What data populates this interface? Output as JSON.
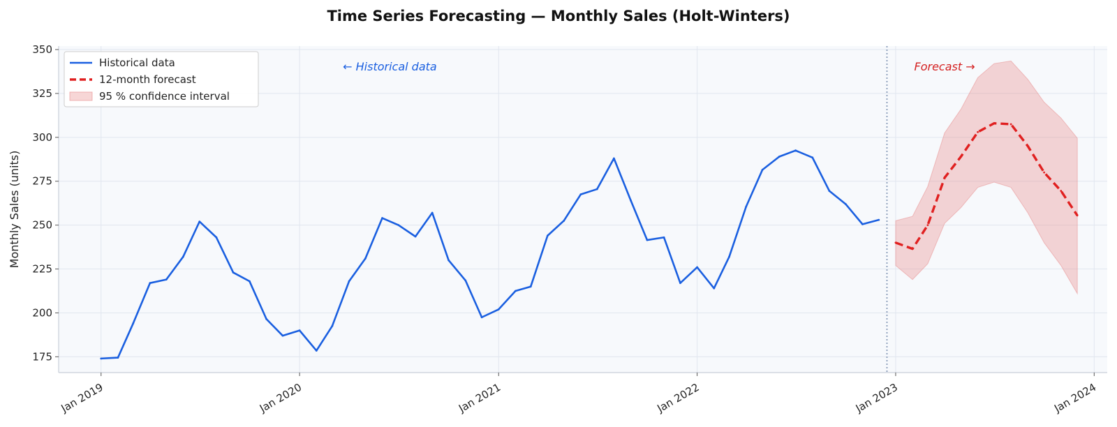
{
  "chart_data": {
    "type": "line",
    "title": "Time Series Forecasting — Monthly Sales (Holt-Winters)",
    "xlabel": "",
    "ylabel": "Monthly Sales (units)",
    "ylim": [
      166,
      352
    ],
    "xlim": [
      "2018-10-15",
      "2024-01-25"
    ],
    "yticks": [
      175,
      200,
      225,
      250,
      275,
      300,
      325,
      350
    ],
    "xticks": [
      {
        "date": "2019-01-01",
        "label": "Jan 2019"
      },
      {
        "date": "2020-01-01",
        "label": "Jan 2020"
      },
      {
        "date": "2021-01-01",
        "label": "Jan 2021"
      },
      {
        "date": "2022-01-01",
        "label": "Jan 2022"
      },
      {
        "date": "2023-01-01",
        "label": "Jan 2023"
      },
      {
        "date": "2024-01-01",
        "label": "Jan 2024"
      }
    ],
    "grid": true,
    "legend_position": "top-left",
    "divider_date": "2022-12-16",
    "series": [
      {
        "name": "Historical data",
        "color": "#1a5fe0",
        "style": "solid",
        "x": [
          "2019-01-01",
          "2019-02-01",
          "2019-03-01",
          "2019-04-01",
          "2019-05-01",
          "2019-06-01",
          "2019-07-01",
          "2019-08-01",
          "2019-09-01",
          "2019-10-01",
          "2019-11-01",
          "2019-12-01",
          "2020-01-01",
          "2020-02-01",
          "2020-03-01",
          "2020-04-01",
          "2020-05-01",
          "2020-06-01",
          "2020-07-01",
          "2020-08-01",
          "2020-09-01",
          "2020-10-01",
          "2020-11-01",
          "2020-12-01",
          "2021-01-01",
          "2021-02-01",
          "2021-03-01",
          "2021-04-01",
          "2021-05-01",
          "2021-06-01",
          "2021-07-01",
          "2021-08-01",
          "2021-09-01",
          "2021-10-01",
          "2021-11-01",
          "2021-12-01",
          "2022-01-01",
          "2022-02-01",
          "2022-03-01",
          "2022-04-01",
          "2022-05-01",
          "2022-06-01",
          "2022-07-01",
          "2022-08-01",
          "2022-09-01",
          "2022-10-01",
          "2022-11-01",
          "2022-12-01"
        ],
        "values": [
          174,
          174.5,
          194,
          217,
          219,
          232,
          252,
          243,
          223,
          218,
          196.5,
          187,
          190,
          178.5,
          192.5,
          218,
          231,
          254,
          250,
          243.5,
          257,
          230,
          218.5,
          197.5,
          202,
          212.5,
          215,
          244,
          252.5,
          267.5,
          270.5,
          288,
          264,
          241.5,
          243,
          217,
          226,
          214,
          232,
          260.5,
          281.5,
          289,
          292.5,
          288.5,
          269.5,
          262,
          250.5,
          253
        ]
      },
      {
        "name": "12-month forecast",
        "color": "#e02020",
        "style": "dashed",
        "x": [
          "2023-01-01",
          "2023-02-01",
          "2023-03-01",
          "2023-04-01",
          "2023-05-01",
          "2023-06-01",
          "2023-07-01",
          "2023-08-01",
          "2023-09-01",
          "2023-10-01",
          "2023-11-01",
          "2023-12-01"
        ],
        "values": [
          240,
          236.5,
          250,
          277,
          289,
          303,
          308,
          307.5,
          295,
          280,
          269.5,
          255.5
        ]
      }
    ],
    "confidence_interval": {
      "name": "95 % confidence interval",
      "color": "#e88a8a",
      "x": [
        "2023-01-01",
        "2023-02-01",
        "2023-03-01",
        "2023-04-01",
        "2023-05-01",
        "2023-06-01",
        "2023-07-01",
        "2023-08-01",
        "2023-09-01",
        "2023-10-01",
        "2023-11-01",
        "2023-12-01"
      ],
      "lower": [
        227,
        219,
        228,
        251,
        260,
        271.5,
        274.5,
        271.5,
        257,
        240,
        227,
        211
      ],
      "upper": [
        252.5,
        255,
        272,
        302.5,
        316,
        334,
        342,
        343.5,
        333,
        320,
        311,
        299.5
      ]
    },
    "annotations": [
      {
        "text": "← Historical data",
        "date": "2020-06-15",
        "y": 338,
        "color": "#1a5fe0"
      },
      {
        "text": "Forecast →",
        "date": "2023-04-01",
        "y": 338,
        "color": "#d42020"
      }
    ]
  }
}
